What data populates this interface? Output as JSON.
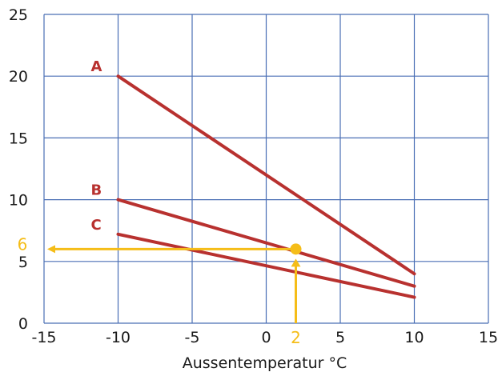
{
  "chart_data": {
    "type": "line",
    "xlabel": "Aussentemperatur °C",
    "ylabel": "",
    "title": "",
    "xlim": [
      -15,
      15
    ],
    "ylim": [
      0,
      25
    ],
    "xticks": [
      -15,
      -10,
      -5,
      0,
      5,
      10,
      15
    ],
    "yticks": [
      0,
      5,
      10,
      15,
      20,
      25
    ],
    "grid": true,
    "colors": {
      "series": "#b8312f",
      "grid": "#4a6fb5",
      "highlight": "#f5bd18"
    },
    "series": [
      {
        "name": "A",
        "x": [
          -10,
          10
        ],
        "y": [
          20,
          4
        ]
      },
      {
        "name": "B",
        "x": [
          -10,
          10
        ],
        "y": [
          10,
          3
        ]
      },
      {
        "name": "C",
        "x": [
          -10,
          10
        ],
        "y": [
          7.2,
          2.1
        ]
      }
    ],
    "highlight": {
      "x": 2,
      "y": 6,
      "x_label": "2",
      "y_label": "6"
    }
  }
}
